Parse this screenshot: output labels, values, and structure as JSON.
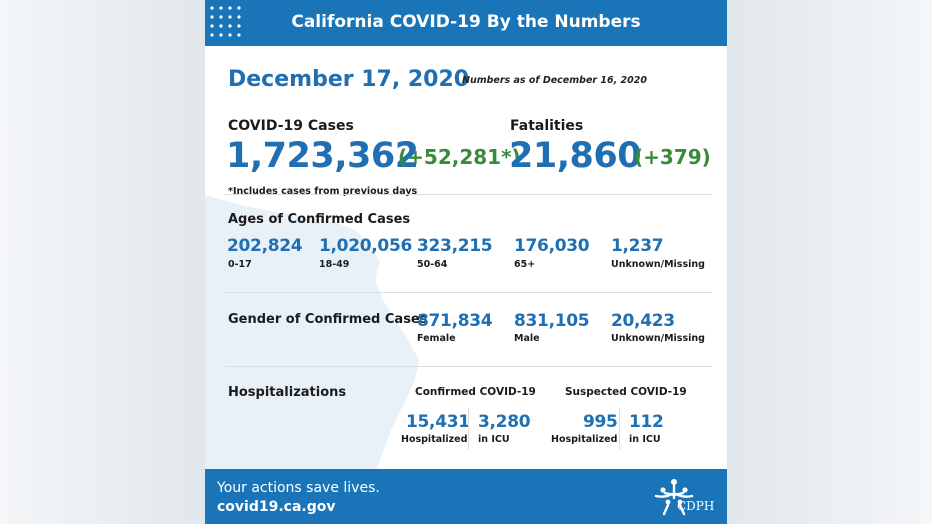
{
  "header": {
    "title": "California COVID-19 By the Numbers"
  },
  "date": "December 17, 2020",
  "as_of": "Numbers as of December 16, 2020",
  "cases": {
    "label": "COVID-19 Cases",
    "value": "1,723,362",
    "change": "(+52,281*)"
  },
  "fatalities": {
    "label": "Fatalities",
    "value": "21,860",
    "change": "(+379)"
  },
  "cases_note": "*Includes cases from previous days",
  "ages": {
    "title": "Ages of Confirmed Cases",
    "groups": [
      {
        "value": "202,824",
        "label": "0-17"
      },
      {
        "value": "1,020,056",
        "label": "18-49"
      },
      {
        "value": "323,215",
        "label": "50-64"
      },
      {
        "value": "176,030",
        "label": "65+"
      },
      {
        "value": "1,237",
        "label": "Unknown/Missing"
      }
    ]
  },
  "gender": {
    "title": "Gender of Confirmed Cases",
    "groups": [
      {
        "value": "871,834",
        "label": "Female"
      },
      {
        "value": "831,105",
        "label": "Male"
      },
      {
        "value": "20,423",
        "label": "Unknown/Missing"
      }
    ]
  },
  "hospitalizations": {
    "title": "Hospitalizations",
    "confirmed": {
      "title": "Confirmed COVID-19",
      "hospitalized": {
        "value": "15,431",
        "label": "Hospitalized"
      },
      "icu": {
        "value": "3,280",
        "label": "in ICU"
      }
    },
    "suspected": {
      "title": "Suspected COVID-19",
      "hospitalized": {
        "value": "995",
        "label": "Hospitalized"
      },
      "icu": {
        "value": "112",
        "label": "in ICU"
      }
    }
  },
  "footer": {
    "tagline": "Your actions save lives.",
    "website": "covid19.ca.gov",
    "logo_text": "CDPH",
    "logo_icon": "cdph-people-logo"
  },
  "colors": {
    "brand_blue": "#1a74b8",
    "number_blue": "#1f6fb2",
    "delta_green": "#3a8a3c",
    "map_tint": "#e8f1f8"
  }
}
